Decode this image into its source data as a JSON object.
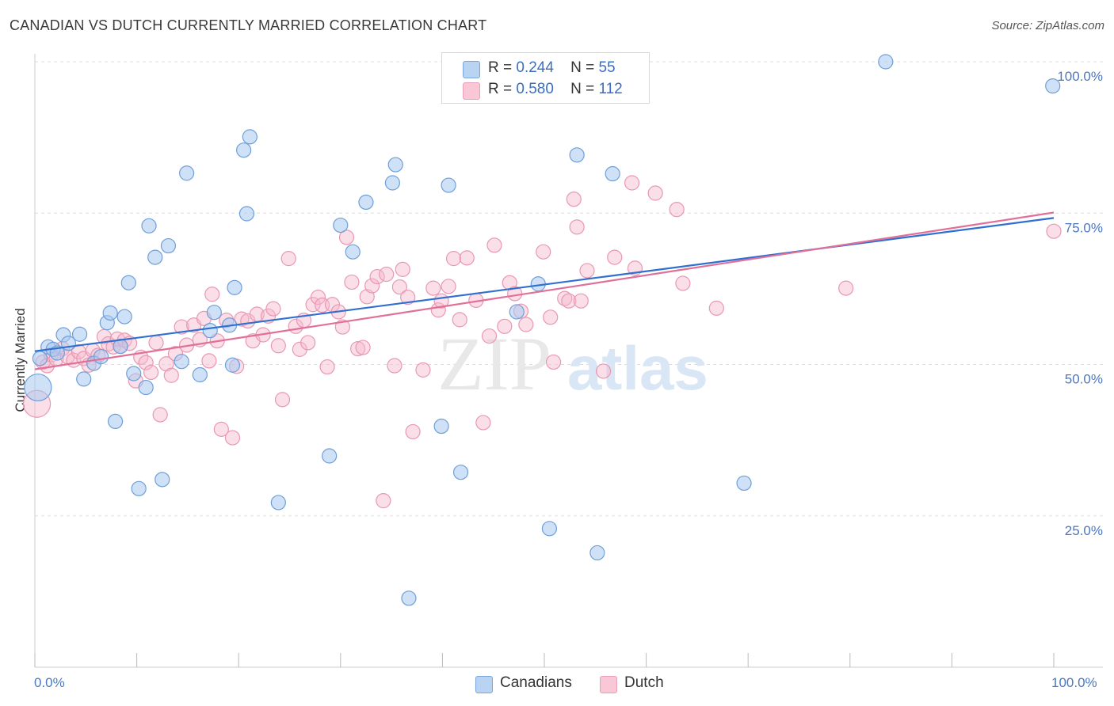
{
  "title": "CANADIAN VS DUTCH CURRENTLY MARRIED CORRELATION CHART",
  "source": "Source: ZipAtlas.com",
  "watermark": {
    "zip": "ZIP",
    "atlas": "atlas"
  },
  "colors": {
    "canadians_fill": "#a8c8f0",
    "canadians_stroke": "#6f9fd8",
    "canadians_line": "#2f6fd0",
    "dutch_fill": "#f7b8cb",
    "dutch_stroke": "#e898b2",
    "dutch_line": "#e0709a",
    "grid": "#dddddd",
    "axis_text": "#4a78c2"
  },
  "legend": {
    "canadians": {
      "r_label": "R =",
      "r_value": "0.244",
      "n_label": "N =",
      "n_value": "55"
    },
    "dutch": {
      "r_label": "R =",
      "r_value": "0.580",
      "n_label": "N =",
      "n_value": "112"
    }
  },
  "bottom_legend": {
    "canadians": "Canadians",
    "dutch": "Dutch"
  },
  "chart_data": {
    "type": "scatter",
    "title": "CANADIAN VS DUTCH CURRENTLY MARRIED CORRELATION CHART",
    "xlabel": "",
    "ylabel": "Currently Married",
    "xlim": [
      0,
      100
    ],
    "ylim": [
      0,
      100
    ],
    "x_tick_labels": [
      "0.0%",
      "100.0%"
    ],
    "y_ticks": [
      25,
      50,
      75,
      100
    ],
    "y_tick_labels": [
      "25.0%",
      "50.0%",
      "75.0%",
      "100.0%"
    ],
    "grid": true,
    "legend_position": "top-center",
    "series": [
      {
        "name": "Canadians",
        "r": 0.244,
        "n": 55,
        "trend": {
          "x": [
            0,
            100
          ],
          "y": [
            52.2,
            74.2
          ]
        },
        "points": [
          {
            "x": 0.3,
            "y": 46.2,
            "big": true
          },
          {
            "x": 0.5,
            "y": 51.0
          },
          {
            "x": 1.3,
            "y": 52.9
          },
          {
            "x": 1.8,
            "y": 52.5
          },
          {
            "x": 2.2,
            "y": 51.9
          },
          {
            "x": 2.8,
            "y": 54.9
          },
          {
            "x": 3.3,
            "y": 53.5
          },
          {
            "x": 4.4,
            "y": 55.0
          },
          {
            "x": 4.8,
            "y": 47.6
          },
          {
            "x": 5.8,
            "y": 50.2
          },
          {
            "x": 6.5,
            "y": 51.3
          },
          {
            "x": 7.1,
            "y": 56.9
          },
          {
            "x": 7.4,
            "y": 58.5
          },
          {
            "x": 7.9,
            "y": 40.6
          },
          {
            "x": 8.4,
            "y": 53.0
          },
          {
            "x": 8.8,
            "y": 57.9
          },
          {
            "x": 9.2,
            "y": 63.5
          },
          {
            "x": 9.7,
            "y": 48.5
          },
          {
            "x": 10.2,
            "y": 29.5
          },
          {
            "x": 10.9,
            "y": 46.2
          },
          {
            "x": 11.2,
            "y": 72.9
          },
          {
            "x": 11.8,
            "y": 67.7
          },
          {
            "x": 12.5,
            "y": 31.0
          },
          {
            "x": 13.1,
            "y": 69.6
          },
          {
            "x": 14.4,
            "y": 50.5
          },
          {
            "x": 14.9,
            "y": 81.6
          },
          {
            "x": 16.2,
            "y": 48.3
          },
          {
            "x": 17.2,
            "y": 55.6
          },
          {
            "x": 17.6,
            "y": 58.6
          },
          {
            "x": 19.1,
            "y": 56.5
          },
          {
            "x": 19.4,
            "y": 49.9
          },
          {
            "x": 19.6,
            "y": 62.7
          },
          {
            "x": 20.5,
            "y": 85.4
          },
          {
            "x": 20.8,
            "y": 74.9
          },
          {
            "x": 21.1,
            "y": 87.6
          },
          {
            "x": 23.9,
            "y": 27.2
          },
          {
            "x": 28.9,
            "y": 34.9
          },
          {
            "x": 30.0,
            "y": 73.0
          },
          {
            "x": 31.2,
            "y": 68.6
          },
          {
            "x": 32.5,
            "y": 76.8
          },
          {
            "x": 35.1,
            "y": 80.0
          },
          {
            "x": 35.4,
            "y": 83.0
          },
          {
            "x": 36.7,
            "y": 11.4
          },
          {
            "x": 39.9,
            "y": 39.8
          },
          {
            "x": 40.6,
            "y": 79.6
          },
          {
            "x": 41.8,
            "y": 32.2
          },
          {
            "x": 47.3,
            "y": 58.7
          },
          {
            "x": 49.4,
            "y": 63.3
          },
          {
            "x": 50.5,
            "y": 22.9
          },
          {
            "x": 53.2,
            "y": 84.6
          },
          {
            "x": 55.2,
            "y": 18.9
          },
          {
            "x": 56.7,
            "y": 81.5
          },
          {
            "x": 69.6,
            "y": 30.4
          },
          {
            "x": 83.5,
            "y": 100.0
          },
          {
            "x": 99.9,
            "y": 96.0
          }
        ]
      },
      {
        "name": "Dutch",
        "r": 0.58,
        "n": 112,
        "trend": {
          "x": [
            0,
            100
          ],
          "y": [
            49.2,
            75.1
          ]
        },
        "points": [
          {
            "x": 0.2,
            "y": 43.5,
            "big": true
          },
          {
            "x": 0.8,
            "y": 50.4
          },
          {
            "x": 1.2,
            "y": 49.8
          },
          {
            "x": 1.6,
            "y": 51.6
          },
          {
            "x": 2.1,
            "y": 50.9
          },
          {
            "x": 2.7,
            "y": 52.6
          },
          {
            "x": 3.2,
            "y": 51.3
          },
          {
            "x": 3.8,
            "y": 50.7
          },
          {
            "x": 4.3,
            "y": 52.1
          },
          {
            "x": 4.8,
            "y": 51.0
          },
          {
            "x": 5.3,
            "y": 49.9
          },
          {
            "x": 5.7,
            "y": 52.3
          },
          {
            "x": 6.2,
            "y": 51.5
          },
          {
            "x": 6.8,
            "y": 54.6
          },
          {
            "x": 7.2,
            "y": 53.4
          },
          {
            "x": 7.7,
            "y": 52.9
          },
          {
            "x": 8.1,
            "y": 54.2
          },
          {
            "x": 8.4,
            "y": 53.0
          },
          {
            "x": 8.8,
            "y": 54.0
          },
          {
            "x": 9.3,
            "y": 53.5
          },
          {
            "x": 9.9,
            "y": 47.3
          },
          {
            "x": 10.4,
            "y": 51.2
          },
          {
            "x": 10.9,
            "y": 50.3
          },
          {
            "x": 11.4,
            "y": 48.7
          },
          {
            "x": 11.9,
            "y": 53.6
          },
          {
            "x": 12.3,
            "y": 41.7
          },
          {
            "x": 12.9,
            "y": 50.1
          },
          {
            "x": 13.4,
            "y": 48.2
          },
          {
            "x": 13.8,
            "y": 51.8
          },
          {
            "x": 14.4,
            "y": 56.2
          },
          {
            "x": 14.9,
            "y": 53.2
          },
          {
            "x": 15.6,
            "y": 56.5
          },
          {
            "x": 16.2,
            "y": 54.1
          },
          {
            "x": 16.6,
            "y": 57.6
          },
          {
            "x": 17.1,
            "y": 50.6
          },
          {
            "x": 17.4,
            "y": 61.6
          },
          {
            "x": 17.9,
            "y": 53.9
          },
          {
            "x": 18.3,
            "y": 39.3
          },
          {
            "x": 18.8,
            "y": 57.3
          },
          {
            "x": 19.4,
            "y": 37.9
          },
          {
            "x": 19.8,
            "y": 49.7
          },
          {
            "x": 20.3,
            "y": 57.5
          },
          {
            "x": 20.9,
            "y": 57.2
          },
          {
            "x": 21.4,
            "y": 53.9
          },
          {
            "x": 21.8,
            "y": 58.3
          },
          {
            "x": 22.4,
            "y": 54.9
          },
          {
            "x": 22.9,
            "y": 58.0
          },
          {
            "x": 23.4,
            "y": 59.2
          },
          {
            "x": 23.9,
            "y": 53.1
          },
          {
            "x": 24.3,
            "y": 44.2
          },
          {
            "x": 24.9,
            "y": 67.5
          },
          {
            "x": 25.6,
            "y": 56.3
          },
          {
            "x": 26.0,
            "y": 52.5
          },
          {
            "x": 26.4,
            "y": 57.3
          },
          {
            "x": 26.8,
            "y": 53.6
          },
          {
            "x": 27.3,
            "y": 59.9
          },
          {
            "x": 27.8,
            "y": 61.1
          },
          {
            "x": 28.2,
            "y": 59.8
          },
          {
            "x": 28.7,
            "y": 49.6
          },
          {
            "x": 29.2,
            "y": 59.9
          },
          {
            "x": 29.8,
            "y": 58.7
          },
          {
            "x": 30.2,
            "y": 56.2
          },
          {
            "x": 30.6,
            "y": 71.0
          },
          {
            "x": 31.1,
            "y": 63.6
          },
          {
            "x": 31.7,
            "y": 52.6
          },
          {
            "x": 32.2,
            "y": 52.8
          },
          {
            "x": 32.6,
            "y": 61.2
          },
          {
            "x": 33.1,
            "y": 63.0
          },
          {
            "x": 33.6,
            "y": 64.5
          },
          {
            "x": 34.2,
            "y": 27.5
          },
          {
            "x": 34.5,
            "y": 64.9
          },
          {
            "x": 35.3,
            "y": 49.8
          },
          {
            "x": 35.8,
            "y": 62.8
          },
          {
            "x": 36.1,
            "y": 65.7
          },
          {
            "x": 36.6,
            "y": 61.1
          },
          {
            "x": 37.1,
            "y": 38.9
          },
          {
            "x": 38.1,
            "y": 49.1
          },
          {
            "x": 39.1,
            "y": 62.6
          },
          {
            "x": 39.6,
            "y": 59.0
          },
          {
            "x": 39.9,
            "y": 60.5
          },
          {
            "x": 40.6,
            "y": 62.9
          },
          {
            "x": 41.1,
            "y": 67.5
          },
          {
            "x": 41.7,
            "y": 57.4
          },
          {
            "x": 42.4,
            "y": 67.6
          },
          {
            "x": 43.3,
            "y": 60.6
          },
          {
            "x": 44.0,
            "y": 40.4
          },
          {
            "x": 44.6,
            "y": 54.7
          },
          {
            "x": 45.1,
            "y": 69.7
          },
          {
            "x": 46.1,
            "y": 56.3
          },
          {
            "x": 46.6,
            "y": 63.5
          },
          {
            "x": 47.1,
            "y": 61.7
          },
          {
            "x": 47.7,
            "y": 58.8
          },
          {
            "x": 48.2,
            "y": 56.6
          },
          {
            "x": 49.9,
            "y": 68.6
          },
          {
            "x": 50.6,
            "y": 57.8
          },
          {
            "x": 50.9,
            "y": 50.4
          },
          {
            "x": 52.0,
            "y": 60.9
          },
          {
            "x": 52.4,
            "y": 60.5
          },
          {
            "x": 52.9,
            "y": 77.3
          },
          {
            "x": 53.2,
            "y": 72.7
          },
          {
            "x": 53.6,
            "y": 60.5
          },
          {
            "x": 54.2,
            "y": 65.5
          },
          {
            "x": 55.8,
            "y": 48.9
          },
          {
            "x": 56.9,
            "y": 67.7
          },
          {
            "x": 58.6,
            "y": 80.0
          },
          {
            "x": 58.9,
            "y": 65.9
          },
          {
            "x": 60.9,
            "y": 78.3
          },
          {
            "x": 63.0,
            "y": 75.6
          },
          {
            "x": 63.6,
            "y": 63.4
          },
          {
            "x": 66.9,
            "y": 59.3
          },
          {
            "x": 79.6,
            "y": 62.6
          },
          {
            "x": 100.0,
            "y": 72.0
          }
        ]
      }
    ]
  }
}
